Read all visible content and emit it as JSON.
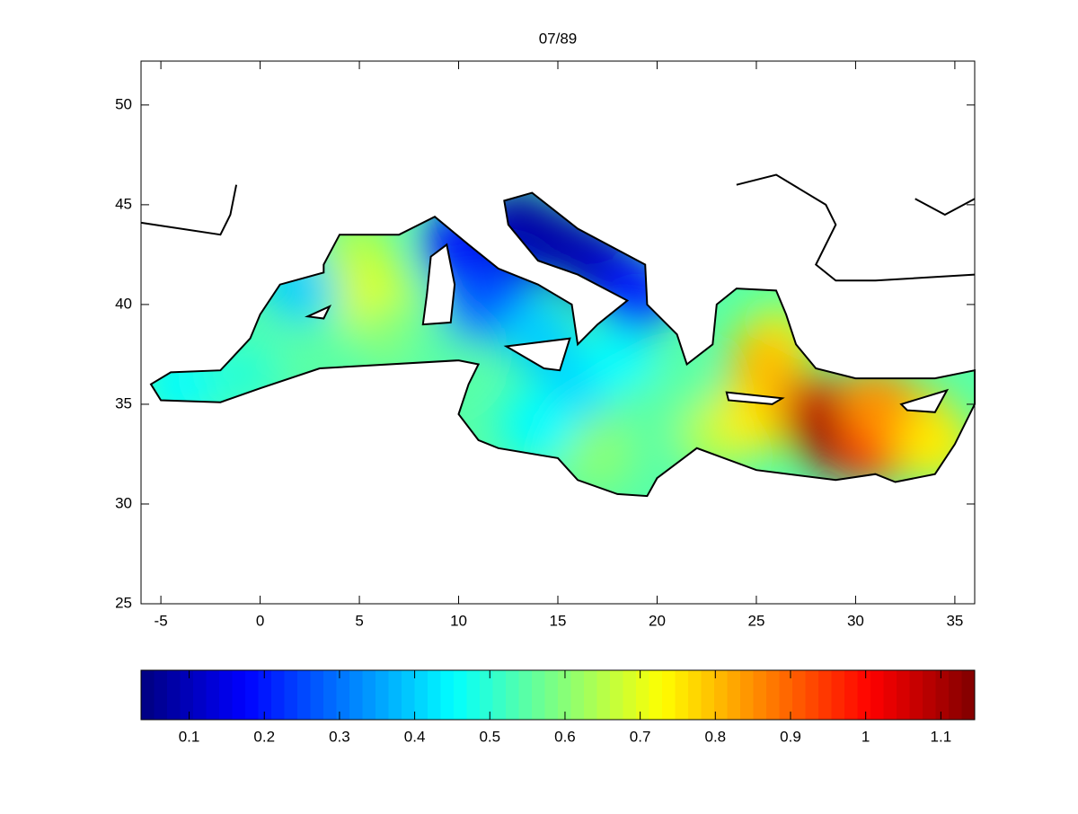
{
  "chart_data": {
    "type": "field-map",
    "title": "07/89",
    "xlim": [
      -6,
      36
    ],
    "ylim": [
      25,
      52.2
    ],
    "xticks": [
      -5,
      0,
      5,
      10,
      15,
      20,
      25,
      30,
      35
    ],
    "yticks": [
      25,
      30,
      35,
      40,
      45,
      50
    ],
    "colormap": "jet",
    "clim": [
      0.036,
      1.145
    ],
    "cticks": [
      0.1,
      0.2,
      0.3,
      0.4,
      0.5,
      0.6,
      0.7,
      0.8,
      0.9,
      1,
      1.1
    ],
    "field": {
      "lon": [
        -4,
        -1,
        3,
        2,
        5,
        6,
        7,
        9,
        11,
        12,
        10,
        14,
        16,
        18,
        19,
        21,
        17,
        14,
        23,
        25,
        26,
        25.5,
        28,
        29,
        31,
        33,
        34,
        31,
        15,
        17,
        13,
        19
      ],
      "lat": [
        36,
        36.5,
        38,
        41,
        42.5,
        40,
        38.5,
        37.5,
        40,
        41.5,
        43,
        38.5,
        36,
        37,
        34,
        35,
        32.5,
        34,
        33.5,
        34.5,
        38,
        37,
        34.5,
        33.5,
        33,
        34,
        33,
        35,
        43,
        42,
        44,
        40.5
      ],
      "values": [
        0.45,
        0.5,
        0.55,
        0.4,
        0.65,
        0.7,
        0.6,
        0.55,
        0.3,
        0.25,
        0.2,
        0.4,
        0.4,
        0.45,
        0.55,
        0.55,
        0.6,
        0.45,
        0.65,
        0.75,
        0.7,
        0.8,
        1.05,
        1.12,
        1.0,
        0.8,
        0.75,
        0.85,
        0.08,
        0.1,
        0.08,
        0.2
      ]
    }
  }
}
